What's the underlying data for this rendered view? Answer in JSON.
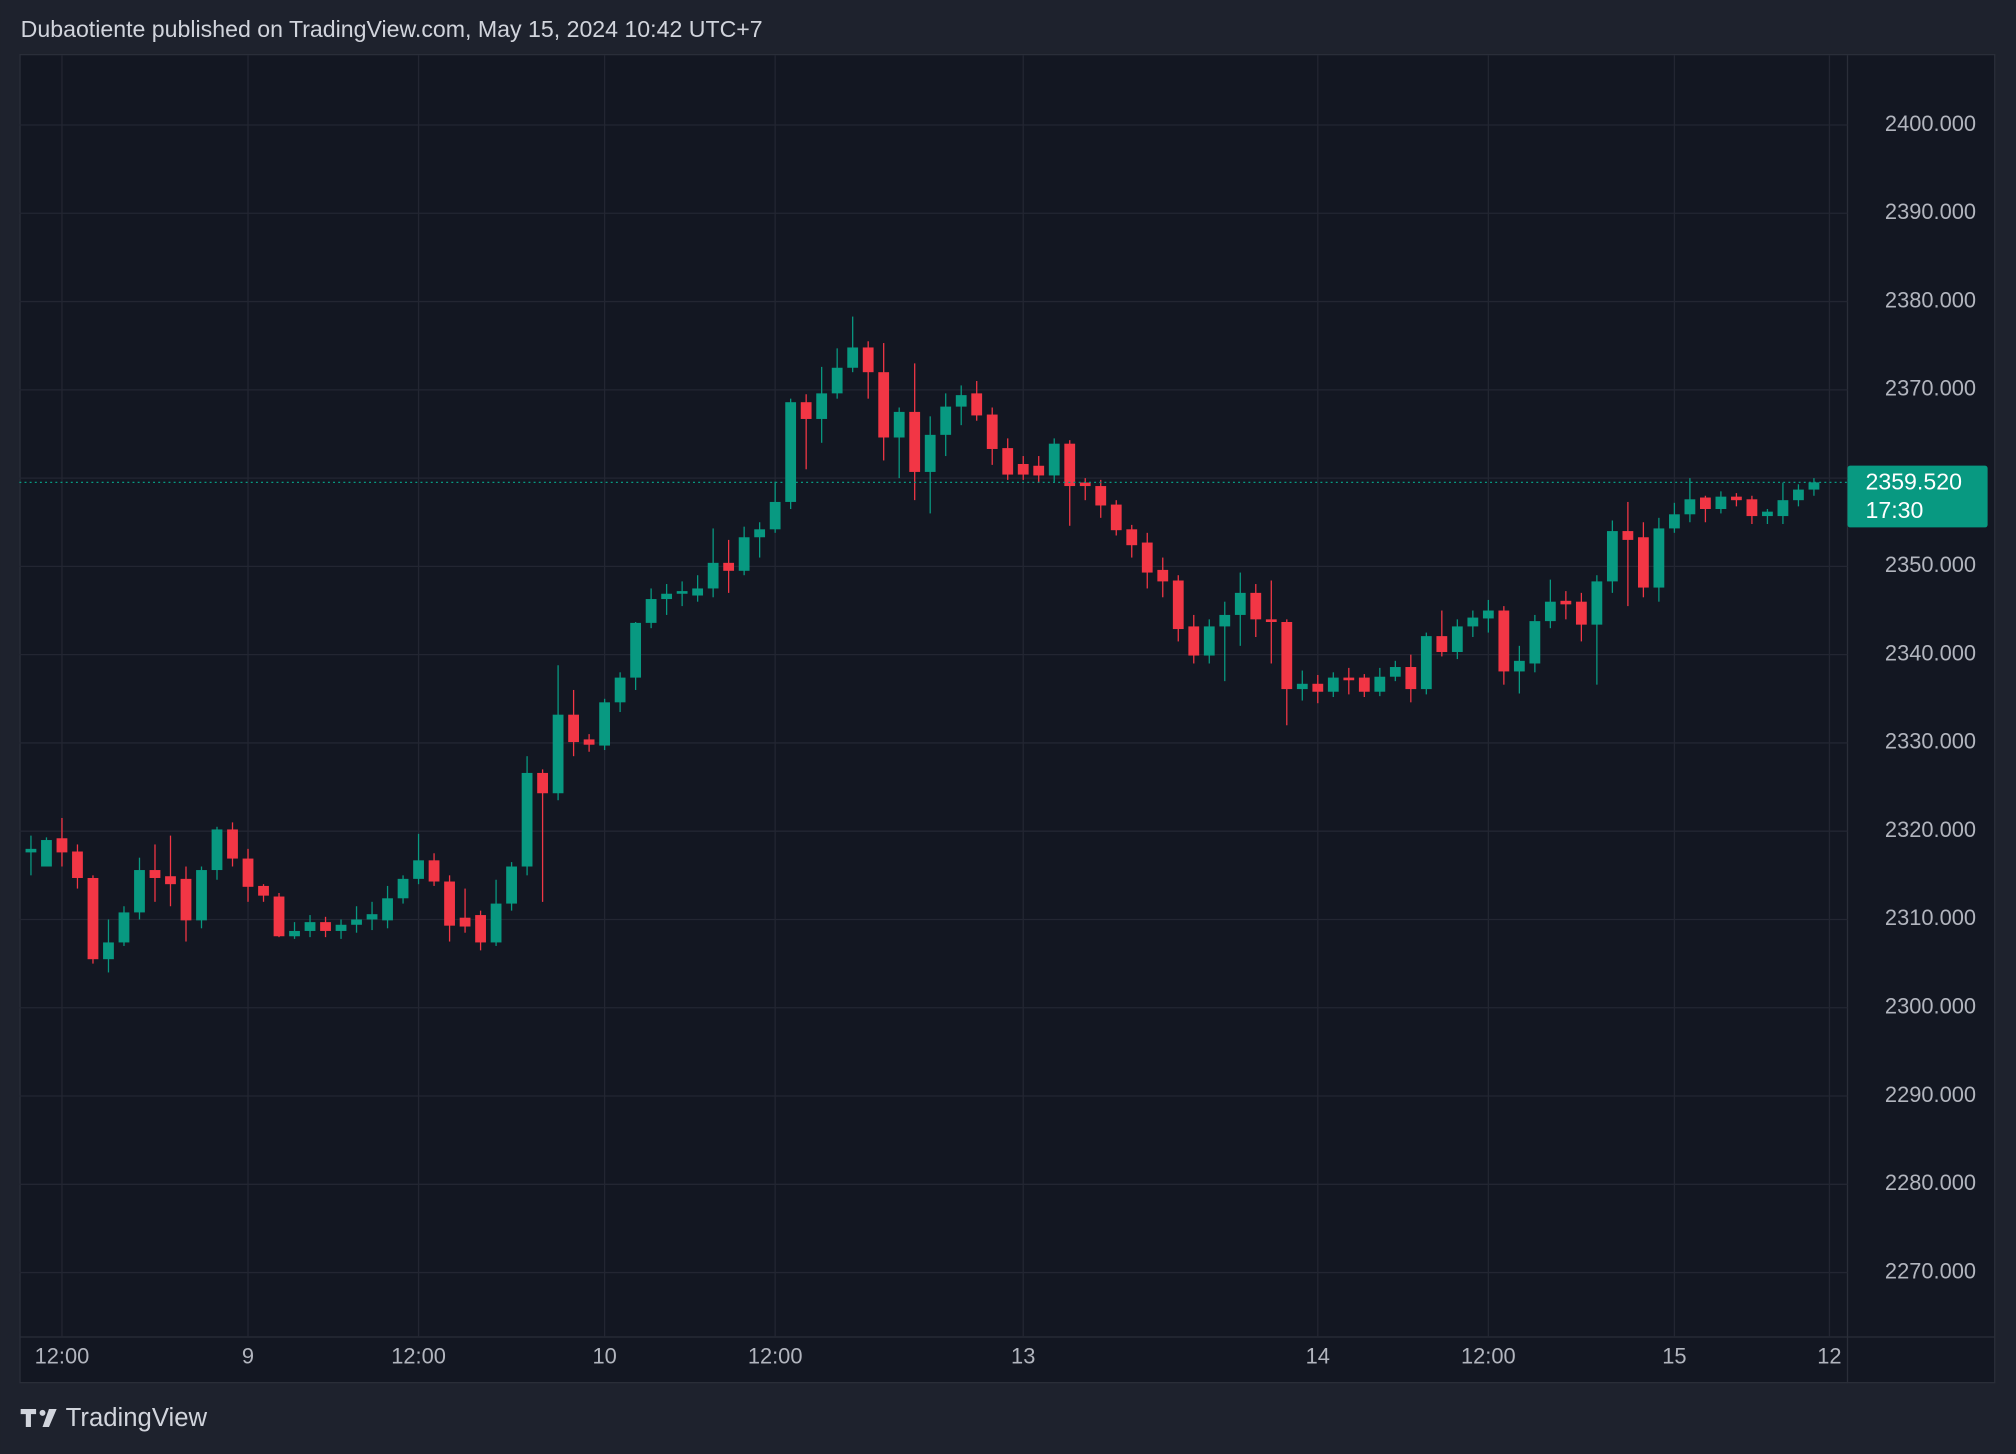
{
  "header": "Dubaotiente published on TradingView.com, May 15, 2024 10:42 UTC+7",
  "footer": "TradingView",
  "chart_data": {
    "type": "candlestick",
    "categories": [
      null,
      null,
      "12:00",
      null,
      null,
      null,
      null,
      null,
      null,
      null,
      null,
      null,
      null,
      null,
      "9",
      null,
      null,
      null,
      null,
      null,
      null,
      null,
      null,
      null,
      null,
      "12:00",
      null,
      null,
      null,
      null,
      null,
      null,
      null,
      null,
      null,
      null,
      null,
      "10",
      null,
      null,
      null,
      null,
      null,
      null,
      null,
      null,
      null,
      null,
      "12:00",
      null,
      null,
      null,
      null,
      null,
      null,
      null,
      null,
      null,
      null,
      null,
      null,
      null,
      null,
      null,
      "13",
      null,
      null,
      null,
      null,
      null,
      null,
      null,
      null,
      null,
      null,
      null,
      null,
      null,
      null,
      null,
      null,
      null,
      null,
      "14",
      null,
      null,
      null,
      null,
      null,
      null,
      null,
      null,
      null,
      null,
      "12:00",
      null,
      null,
      null,
      null,
      null,
      null,
      null,
      null,
      null,
      null,
      null,
      "15",
      null,
      null,
      null,
      null,
      null,
      null,
      null,
      null,
      null,
      "12"
    ],
    "open": [
      2317.6,
      2316.0,
      2319.2,
      2317.7,
      2314.7,
      2305.5,
      2307.4,
      2310.8,
      2315.6,
      2314.9,
      2314.6,
      2309.9,
      2315.6,
      2320.2,
      2316.9,
      2313.8,
      2312.6,
      2308.1,
      2308.7,
      2309.7,
      2308.7,
      2309.4,
      2310.0,
      2309.9,
      2312.4,
      2314.6,
      2316.7,
      2314.3,
      2310.2,
      2310.5,
      2307.4,
      2311.8,
      2316.0,
      2326.6,
      2324.3,
      2333.2,
      2330.4,
      2329.7,
      2334.6,
      2337.4,
      2343.6,
      2346.3,
      2346.9,
      2346.7,
      2347.5,
      2350.4,
      2349.5,
      2353.3,
      2354.2,
      2357.3,
      2368.6,
      2366.7,
      2369.6,
      2372.5,
      2374.8,
      2372.0,
      2364.6,
      2367.5,
      2360.7,
      2364.9,
      2368.1,
      2369.6,
      2367.2,
      2363.4,
      2361.6,
      2361.4,
      2360.3,
      2363.9,
      2359.5,
      2359.1,
      2357.0,
      2354.2,
      2352.7,
      2349.6,
      2348.4,
      2343.2,
      2339.9,
      2343.2,
      2344.5,
      2347.0,
      2344.0,
      2343.7,
      2336.1,
      2336.7,
      2335.8,
      2337.4,
      2337.4,
      2335.8,
      2337.5,
      2338.6,
      2336.1,
      2342.1,
      2340.3,
      2343.2,
      2344.1,
      2345.0,
      2338.1,
      2339.0,
      2343.8,
      2346.1,
      2346.0,
      2343.4,
      2348.3,
      2354.0,
      2353.3,
      2347.6,
      2354.3,
      2355.9,
      2357.8,
      2356.5,
      2357.9,
      2357.6,
      2355.7,
      2355.7,
      2357.5,
      2358.7,
      null
    ],
    "high": [
      2319.5,
      2319.3,
      2321.5,
      2318.5,
      2315.0,
      2310.0,
      2311.5,
      2317.0,
      2318.5,
      2319.5,
      2316.0,
      2316.0,
      2320.5,
      2321.0,
      2318.0,
      2314.0,
      2313.0,
      2309.7,
      2310.5,
      2310.3,
      2310.0,
      2311.5,
      2312.0,
      2313.8,
      2315.0,
      2319.7,
      2317.5,
      2315.0,
      2313.5,
      2311.0,
      2314.5,
      2316.5,
      2328.5,
      2327.0,
      2338.8,
      2336.0,
      2331.0,
      2335.0,
      2338.0,
      2343.7,
      2347.5,
      2348.0,
      2348.3,
      2349.0,
      2354.3,
      2353.0,
      2354.5,
      2355.0,
      2359.6,
      2369.0,
      2369.5,
      2372.6,
      2374.7,
      2378.3,
      2375.5,
      2375.3,
      2368.0,
      2373.0,
      2367.0,
      2369.6,
      2370.5,
      2371.0,
      2368.0,
      2364.5,
      2362.5,
      2362.5,
      2364.5,
      2364.3,
      2360.0,
      2359.8,
      2357.5,
      2354.7,
      2353.8,
      2351.0,
      2349.0,
      2344.5,
      2344.0,
      2346.0,
      2349.3,
      2348.0,
      2348.4,
      2344.0,
      2338.2,
      2337.7,
      2338.0,
      2338.5,
      2337.8,
      2338.5,
      2339.3,
      2340.0,
      2342.5,
      2345.0,
      2344.0,
      2345.0,
      2346.2,
      2345.5,
      2341.0,
      2344.5,
      2348.5,
      2347.2,
      2347.0,
      2349.0,
      2355.2,
      2357.3,
      2355.0,
      2355.5,
      2357.2,
      2360.0,
      2358.0,
      2358.5,
      2358.3,
      2358.0,
      2356.5,
      2359.5,
      2359.3,
      2360.0,
      null
    ],
    "low": [
      2315.0,
      2316.0,
      2316.0,
      2313.5,
      2305.0,
      2304.0,
      2307.0,
      2310.0,
      2312.0,
      2311.5,
      2307.5,
      2309.0,
      2314.5,
      2316.0,
      2312.0,
      2312.0,
      2308.0,
      2307.8,
      2308.0,
      2308.0,
      2307.8,
      2308.5,
      2308.8,
      2309.0,
      2311.8,
      2314.0,
      2313.8,
      2307.5,
      2308.5,
      2306.5,
      2307.0,
      2311.0,
      2315.0,
      2312.0,
      2323.5,
      2328.5,
      2329.0,
      2329.2,
      2333.5,
      2336.0,
      2343.0,
      2344.5,
      2345.5,
      2346.0,
      2346.5,
      2347.0,
      2349.0,
      2351.0,
      2353.8,
      2356.5,
      2361.0,
      2364.0,
      2369.0,
      2372.0,
      2369.0,
      2362.0,
      2360.0,
      2357.5,
      2356.0,
      2362.5,
      2366.0,
      2366.5,
      2361.5,
      2359.8,
      2359.8,
      2359.5,
      2359.5,
      2354.6,
      2357.5,
      2355.5,
      2353.5,
      2351.0,
      2347.5,
      2346.5,
      2341.5,
      2339.0,
      2339.0,
      2337.0,
      2341.0,
      2342.0,
      2339.0,
      2332.0,
      2334.8,
      2334.5,
      2335.2,
      2335.5,
      2335.2,
      2335.3,
      2337.0,
      2334.6,
      2335.5,
      2339.8,
      2339.5,
      2342.0,
      2342.5,
      2336.6,
      2335.6,
      2338.0,
      2343.0,
      2344.0,
      2341.5,
      2336.6,
      2347.0,
      2345.5,
      2346.5,
      2346.0,
      2353.8,
      2355.0,
      2355.0,
      2356.0,
      2356.8,
      2354.8,
      2354.8,
      2354.8,
      2356.8,
      2358.0,
      null
    ],
    "close": [
      2318.0,
      2319.0,
      2317.6,
      2314.7,
      2305.5,
      2307.4,
      2310.8,
      2315.6,
      2314.7,
      2314.0,
      2309.9,
      2315.6,
      2320.2,
      2316.9,
      2313.7,
      2312.7,
      2308.1,
      2308.7,
      2309.7,
      2308.7,
      2309.4,
      2310.0,
      2310.6,
      2312.4,
      2314.6,
      2316.7,
      2314.3,
      2309.3,
      2309.2,
      2307.4,
      2311.8,
      2316.0,
      2326.6,
      2324.3,
      2333.2,
      2330.1,
      2329.8,
      2334.6,
      2337.4,
      2343.6,
      2346.3,
      2346.9,
      2347.2,
      2347.5,
      2350.4,
      2349.5,
      2353.3,
      2354.2,
      2357.3,
      2368.6,
      2366.7,
      2369.6,
      2372.5,
      2374.8,
      2372.0,
      2364.6,
      2367.5,
      2360.7,
      2364.9,
      2368.1,
      2369.4,
      2367.1,
      2363.3,
      2360.4,
      2360.4,
      2360.3,
      2363.9,
      2359.1,
      2359.1,
      2356.9,
      2354.1,
      2352.4,
      2349.3,
      2348.3,
      2342.9,
      2339.9,
      2343.2,
      2344.5,
      2347.0,
      2344.0,
      2343.7,
      2336.1,
      2336.7,
      2335.8,
      2337.4,
      2337.1,
      2335.8,
      2337.5,
      2338.6,
      2336.1,
      2342.1,
      2340.3,
      2343.2,
      2344.2,
      2345.0,
      2338.1,
      2339.3,
      2343.8,
      2346.0,
      2345.7,
      2343.4,
      2348.3,
      2354.0,
      2353.0,
      2347.6,
      2354.3,
      2355.9,
      2357.6,
      2356.5,
      2357.9,
      2357.5,
      2355.7,
      2356.2,
      2357.5,
      2358.7,
      2359.52,
      null
    ],
    "up_color": "#089981",
    "down_color": "#f23645",
    "ylim": [
      2262.7,
      2407.9
    ],
    "yticks": [
      {
        "value": 2270,
        "label": "2270.000"
      },
      {
        "value": 2280,
        "label": "2280.000"
      },
      {
        "value": 2290,
        "label": "2290.000"
      },
      {
        "value": 2300,
        "label": "2300.000"
      },
      {
        "value": 2310,
        "label": "2310.000"
      },
      {
        "value": 2320,
        "label": "2320.000"
      },
      {
        "value": 2330,
        "label": "2330.000"
      },
      {
        "value": 2340,
        "label": "2340.000"
      },
      {
        "value": 2350,
        "label": "2350.000"
      },
      {
        "value": 2360,
        "label": "2360.000"
      },
      {
        "value": 2370,
        "label": "2370.000"
      },
      {
        "value": 2380,
        "label": "2380.000"
      },
      {
        "value": 2390,
        "label": "2390.000"
      },
      {
        "value": 2400,
        "label": "2400.000"
      }
    ],
    "grid": true,
    "last_price": {
      "value": 2359.52,
      "label": "2359.520"
    },
    "countdown": "17:30"
  }
}
